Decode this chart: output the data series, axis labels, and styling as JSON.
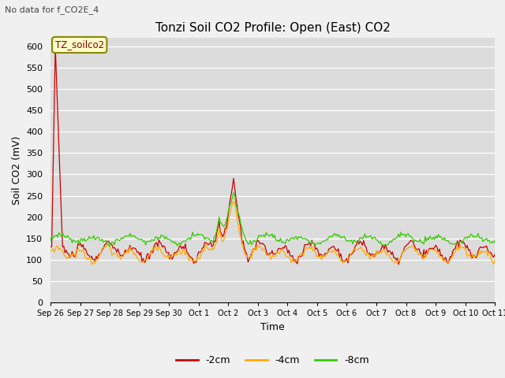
{
  "title": "Tonzi Soil CO2 Profile: Open (East) CO2",
  "subtitle": "No data for f_CO2E_4",
  "ylabel": "Soil CO2 (mV)",
  "xlabel": "Time",
  "annotation_label": "TZ_soilco2",
  "ylim": [
    0,
    620
  ],
  "yticks": [
    0,
    50,
    100,
    150,
    200,
    250,
    300,
    350,
    400,
    450,
    500,
    550,
    600
  ],
  "legend_labels": [
    "-2cm",
    "-4cm",
    "-8cm"
  ],
  "legend_colors": [
    "#cc0000",
    "#ffaa00",
    "#33cc00"
  ],
  "line_colors": [
    "#cc0000",
    "#ffaa00",
    "#33cc00"
  ],
  "bg_color": "#dcdcdc",
  "plot_bg_color": "#dcdcdc",
  "n_points": 370,
  "title_fontsize": 11,
  "label_fontsize": 9,
  "tick_fontsize": 8,
  "xtick_fontsize": 7
}
